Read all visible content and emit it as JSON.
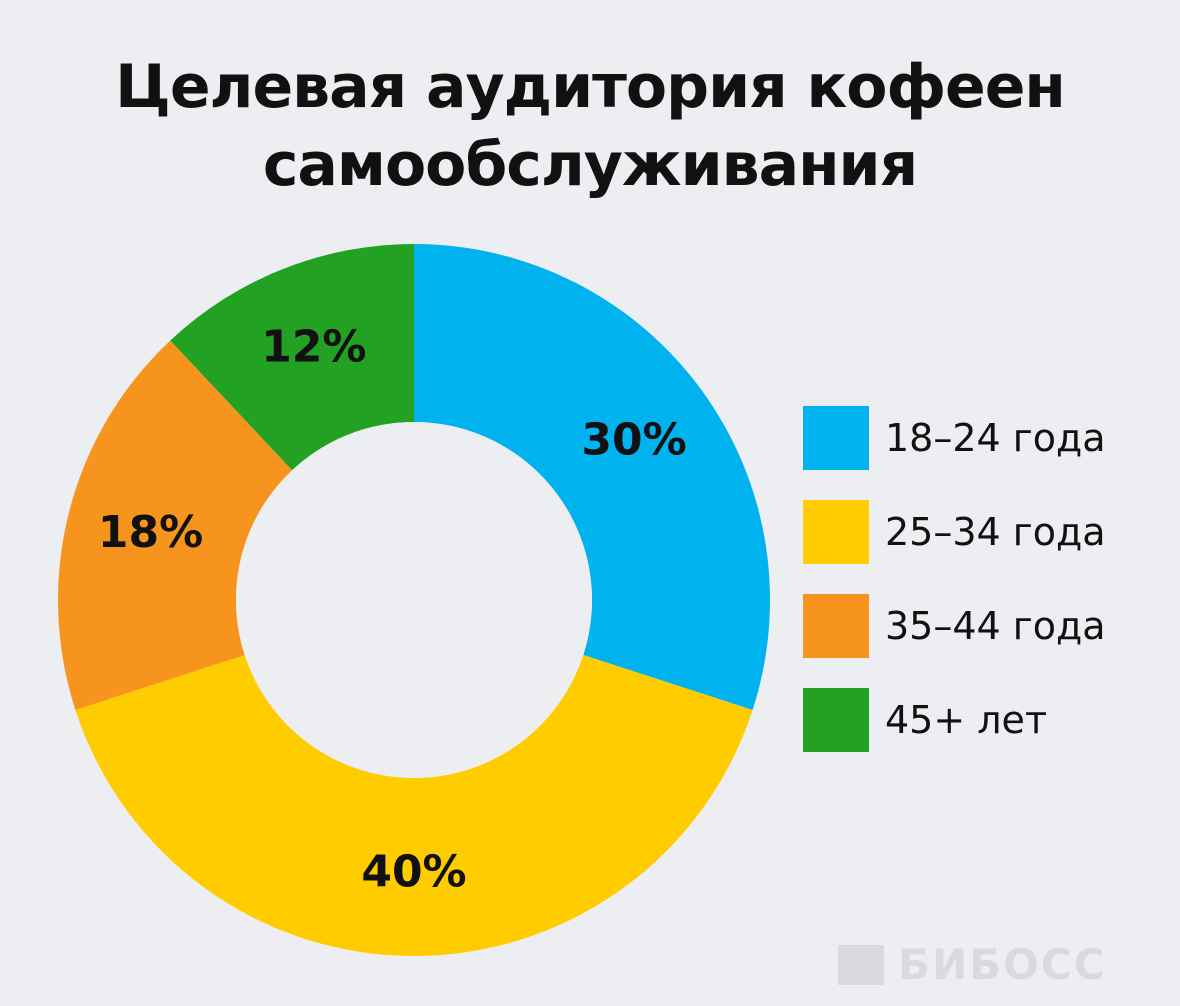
{
  "chart_data": {
    "type": "pie",
    "style": "donut",
    "title_lines": [
      "Целевая аудитория кофеен",
      "самообслуживания"
    ],
    "categories": [
      "18–24 года",
      "25–34 года",
      "35–44 года",
      "45+ лет"
    ],
    "values": [
      30,
      40,
      18,
      12
    ],
    "value_labels": [
      "30%",
      "40%",
      "18%",
      "12%"
    ],
    "colors": [
      "#00b2ee",
      "#ffcc00",
      "#f7941d",
      "#22a122"
    ],
    "legend_position": "right"
  },
  "brand": {
    "text": "БИБОСС"
  }
}
